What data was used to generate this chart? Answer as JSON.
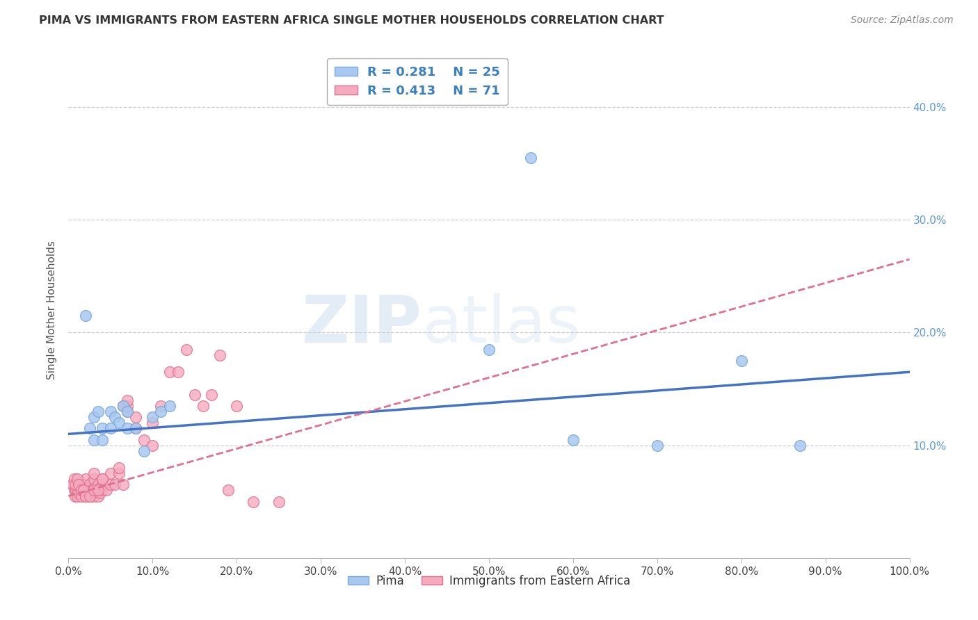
{
  "title": "PIMA VS IMMIGRANTS FROM EASTERN AFRICA SINGLE MOTHER HOUSEHOLDS CORRELATION CHART",
  "source": "Source: ZipAtlas.com",
  "ylabel": "Single Mother Households",
  "pima_color": "#A8C8F0",
  "pima_edge_color": "#7AAAD8",
  "immigrant_color": "#F5AABF",
  "immigrant_edge_color": "#E07090",
  "pima_R": "0.281",
  "pima_N": "25",
  "immigrant_R": "0.413",
  "immigrant_N": "71",
  "pima_line_color": "#4472C4",
  "immigrant_line_color": "#E07090",
  "watermark_part1": "ZIP",
  "watermark_part2": "atlas",
  "background_color": "#FFFFFF",
  "grid_color": "#CCCCCC",
  "pima_scatter_x": [
    0.02,
    0.025,
    0.03,
    0.035,
    0.04,
    0.05,
    0.055,
    0.06,
    0.065,
    0.07,
    0.07,
    0.08,
    0.09,
    0.1,
    0.11,
    0.12,
    0.03,
    0.04,
    0.05,
    0.55,
    0.6,
    0.7,
    0.8,
    0.87,
    0.5
  ],
  "pima_scatter_y": [
    0.215,
    0.115,
    0.125,
    0.13,
    0.115,
    0.13,
    0.125,
    0.12,
    0.135,
    0.13,
    0.115,
    0.115,
    0.095,
    0.125,
    0.13,
    0.135,
    0.105,
    0.105,
    0.115,
    0.355,
    0.105,
    0.1,
    0.175,
    0.1,
    0.185
  ],
  "immigrant_scatter_x": [
    0.005,
    0.007,
    0.008,
    0.009,
    0.01,
    0.01,
    0.01,
    0.012,
    0.015,
    0.015,
    0.015,
    0.018,
    0.02,
    0.02,
    0.02,
    0.02,
    0.022,
    0.025,
    0.025,
    0.028,
    0.03,
    0.03,
    0.03,
    0.03,
    0.03,
    0.035,
    0.035,
    0.035,
    0.038,
    0.04,
    0.04,
    0.04,
    0.045,
    0.05,
    0.05,
    0.055,
    0.06,
    0.06,
    0.065,
    0.065,
    0.07,
    0.07,
    0.07,
    0.08,
    0.08,
    0.09,
    0.1,
    0.1,
    0.11,
    0.12,
    0.13,
    0.14,
    0.15,
    0.16,
    0.17,
    0.18,
    0.19,
    0.2,
    0.22,
    0.25,
    0.007,
    0.008,
    0.01,
    0.012,
    0.015,
    0.018,
    0.02,
    0.025,
    0.03,
    0.035,
    0.04
  ],
  "immigrant_scatter_y": [
    0.065,
    0.06,
    0.055,
    0.06,
    0.055,
    0.06,
    0.065,
    0.058,
    0.055,
    0.06,
    0.065,
    0.06,
    0.055,
    0.06,
    0.065,
    0.07,
    0.062,
    0.055,
    0.065,
    0.06,
    0.055,
    0.058,
    0.062,
    0.07,
    0.075,
    0.055,
    0.06,
    0.065,
    0.058,
    0.06,
    0.065,
    0.07,
    0.06,
    0.065,
    0.075,
    0.065,
    0.075,
    0.08,
    0.065,
    0.135,
    0.13,
    0.135,
    0.14,
    0.115,
    0.125,
    0.105,
    0.1,
    0.12,
    0.135,
    0.165,
    0.165,
    0.185,
    0.145,
    0.135,
    0.145,
    0.18,
    0.06,
    0.135,
    0.05,
    0.05,
    0.07,
    0.065,
    0.07,
    0.065,
    0.06,
    0.06,
    0.055,
    0.055,
    0.06,
    0.06,
    0.07
  ],
  "pima_line_x0": 0.0,
  "pima_line_x1": 1.0,
  "pima_line_y0": 0.11,
  "pima_line_y1": 0.165,
  "imm_line_x0": 0.0,
  "imm_line_x1": 1.0,
  "imm_line_y0": 0.055,
  "imm_line_y1": 0.265,
  "xlim": [
    0.0,
    1.0
  ],
  "ylim": [
    0.0,
    0.44
  ],
  "ytick_vals": [
    0.1,
    0.2,
    0.3,
    0.4
  ],
  "xtick_vals": [
    0.0,
    0.1,
    0.2,
    0.3,
    0.4,
    0.5,
    0.6,
    0.7,
    0.8,
    0.9,
    1.0
  ]
}
